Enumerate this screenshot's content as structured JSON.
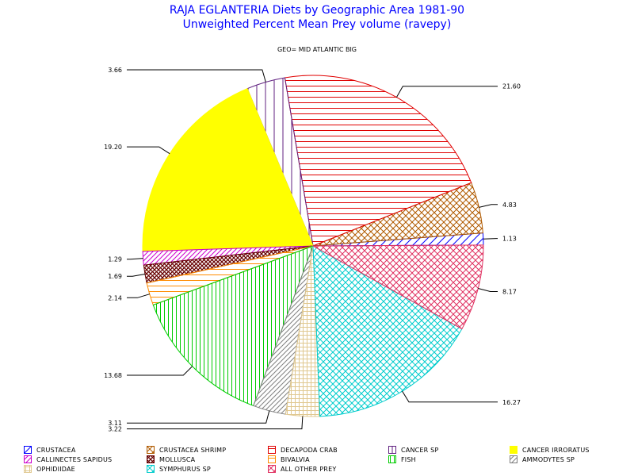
{
  "header": {
    "title": "RAJA EGLANTERIA Diets by Geographic Area 1981-90",
    "subtitle": "Unweighted Percent Mean Prey volume (ravepy)",
    "geo_label": "GEO= MID ATLANTIC BIG"
  },
  "chart_data": {
    "type": "pie",
    "title": "RAJA EGLANTERIA Diets by Geographic Area 1981-90",
    "subtitle": "Unweighted Percent Mean Prey volume (ravepy)",
    "panel_label": "GEO= MID ATLANTIC BIG",
    "slices": [
      {
        "name": "CRUSTACEA",
        "value": 1.13,
        "label": "1.13",
        "color": "#0000ff",
        "pattern": "hatch-diag-sparse"
      },
      {
        "name": "CRUSTACEA SHRIMP",
        "value": 4.83,
        "label": "4.83",
        "color": "#b05a00",
        "pattern": "crosshatch-diag"
      },
      {
        "name": "DECAPODA CRAB",
        "value": 21.6,
        "label": "21.60",
        "color": "#e00000",
        "pattern": "hatch-horizontal"
      },
      {
        "name": "CANCER SP",
        "value": 3.66,
        "label": "3.66",
        "color": "#602080",
        "pattern": "hatch-vertical-sparse"
      },
      {
        "name": "CANCER IRRORATUS",
        "value": 19.2,
        "label": "19.20",
        "color": "#ffff00",
        "pattern": "solid"
      },
      {
        "name": "CALLINECTES SAPIDUS",
        "value": 1.29,
        "label": "1.29",
        "color": "#cc00cc",
        "pattern": "hatch-diag"
      },
      {
        "name": "MOLLUSCA",
        "value": 1.69,
        "label": "1.69",
        "color": "#660000",
        "pattern": "crosshatch-diag-dense"
      },
      {
        "name": "BIVALVIA",
        "value": 2.14,
        "label": "2.14",
        "color": "#ff8c00",
        "pattern": "hatch-horizontal"
      },
      {
        "name": "FISH",
        "value": 13.68,
        "label": "13.68",
        "color": "#00cc00",
        "pattern": "hatch-vertical"
      },
      {
        "name": "AMMODYTES SP",
        "value": 3.11,
        "label": "3.11",
        "color": "#808080",
        "pattern": "hatch-diag"
      },
      {
        "name": "OPHIDIIDAE",
        "value": 3.22,
        "label": "3.22",
        "color": "#e0c890",
        "pattern": "grid"
      },
      {
        "name": "SYMPHURUS SP",
        "value": 16.27,
        "label": "16.27",
        "color": "#00cccc",
        "pattern": "crosshatch-diag"
      },
      {
        "name": "ALL OTHER PREY",
        "value": 8.17,
        "label": "8.17",
        "color": "#e03060",
        "pattern": "crosshatch-diag"
      }
    ],
    "legend_position": "bottom",
    "legend_order": [
      "CRUSTACEA",
      "CRUSTACEA SHRIMP",
      "DECAPODA CRAB",
      "CANCER SP",
      "CANCER IRRORATUS",
      "CALLINECTES SAPIDUS",
      "MOLLUSCA",
      "BIVALVIA",
      "FISH",
      "AMMODYTES SP",
      "OPHIDIIDAE",
      "SYMPHURUS SP",
      "ALL OTHER PREY"
    ]
  }
}
